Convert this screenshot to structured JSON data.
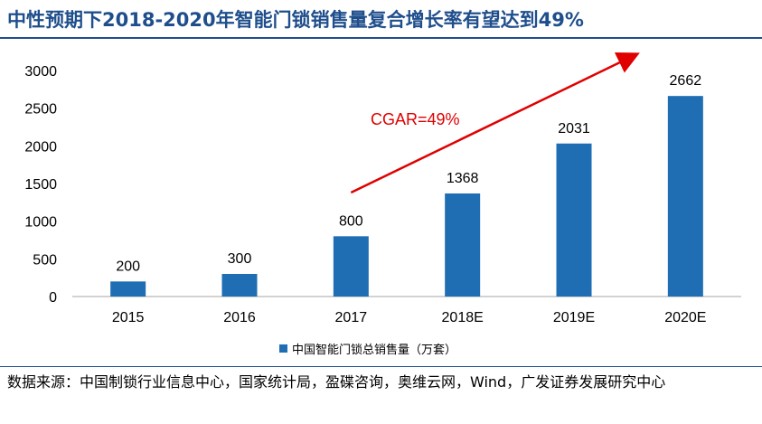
{
  "title": "中性预期下2018-2020年智能门锁销售量复合增长率有望达到49%",
  "source": "数据来源：中国制锁行业信息中心，国家统计局，盈碟咨询，奥维云网，Wind，广发证券发展研究中心",
  "colors": {
    "bar": "#1f6eb3",
    "title": "#1f4e8c",
    "annotation": "#e00000"
  },
  "chart_data": {
    "type": "bar",
    "categories": [
      "2015",
      "2016",
      "2017",
      "2018E",
      "2019E",
      "2020E"
    ],
    "series": [
      {
        "name": "中国智能门锁总销售量（万套）",
        "values": [
          200,
          300,
          800,
          1368,
          2031,
          2662
        ]
      }
    ],
    "yticks": [
      "0",
      "500",
      "1000",
      "1500",
      "2000",
      "2500",
      "3000"
    ],
    "ylim": [
      0,
      3000
    ],
    "grid": false,
    "legend": "bottom",
    "annotation": {
      "text": "CGAR=49%",
      "arrow_from": [
        "2017",
        1380
      ],
      "arrow_to": [
        "2020E",
        3210
      ]
    }
  }
}
